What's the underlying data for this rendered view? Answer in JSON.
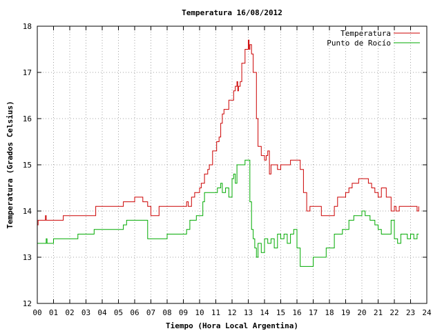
{
  "chart_data": {
    "type": "line",
    "title": "Temperatura 16/08/2012",
    "xlabel": "Tiempo (Hora Local Argentina)",
    "ylabel": "Temperatura (Grados Celsius)",
    "xlim": [
      0,
      24
    ],
    "ylim": [
      12,
      18
    ],
    "x_ticks": [
      "00",
      "01",
      "02",
      "03",
      "04",
      "05",
      "06",
      "07",
      "08",
      "09",
      "10",
      "11",
      "12",
      "13",
      "14",
      "15",
      "16",
      "17",
      "18",
      "19",
      "20",
      "21",
      "22",
      "23",
      "24"
    ],
    "y_ticks": [
      "12",
      "13",
      "14",
      "15",
      "16",
      "17",
      "18"
    ],
    "grid": true,
    "legend_position": "top-right",
    "series": [
      {
        "name": "Temperatura",
        "color": "#cc0000",
        "x": [
          0.0,
          0.05,
          0.1,
          0.3,
          0.45,
          0.5,
          0.55,
          1.0,
          1.5,
          1.6,
          2.0,
          3.0,
          3.5,
          3.6,
          4.5,
          5.0,
          5.2,
          5.3,
          5.5,
          5.7,
          5.8,
          6.0,
          6.2,
          6.3,
          6.5,
          6.8,
          7.0,
          7.5,
          8.0,
          8.5,
          9.0,
          9.2,
          9.3,
          9.5,
          9.7,
          10.0,
          10.1,
          10.2,
          10.3,
          10.5,
          10.6,
          10.8,
          10.9,
          11.0,
          11.05,
          11.2,
          11.3,
          11.4,
          11.5,
          11.8,
          12.0,
          12.1,
          12.2,
          12.3,
          12.35,
          12.4,
          12.5,
          12.6,
          12.8,
          12.9,
          13.0,
          13.05,
          13.1,
          13.2,
          13.3,
          13.5,
          13.6,
          13.8,
          14.0,
          14.1,
          14.2,
          14.3,
          14.4,
          14.5,
          14.6,
          14.8,
          15.0,
          15.2,
          15.4,
          15.6,
          15.8,
          16.0,
          16.2,
          16.4,
          16.6,
          16.8,
          17.0,
          17.2,
          17.5,
          17.8,
          18.0,
          18.3,
          18.5,
          18.7,
          19.0,
          19.2,
          19.4,
          19.6,
          19.8,
          20.0,
          20.2,
          20.4,
          20.6,
          20.8,
          21.0,
          21.2,
          21.5,
          21.8,
          22.0,
          22.1,
          22.3,
          22.5,
          22.8,
          23.0,
          23.2,
          23.4,
          23.5
        ],
        "y": [
          13.7,
          13.8,
          13.8,
          13.8,
          13.8,
          13.9,
          13.8,
          13.8,
          13.8,
          13.9,
          13.9,
          13.9,
          13.9,
          14.1,
          14.1,
          14.1,
          14.1,
          14.2,
          14.2,
          14.2,
          14.2,
          14.3,
          14.3,
          14.3,
          14.2,
          14.1,
          13.9,
          14.1,
          14.1,
          14.1,
          14.1,
          14.2,
          14.1,
          14.3,
          14.4,
          14.5,
          14.6,
          14.6,
          14.8,
          14.9,
          15.0,
          15.3,
          15.3,
          15.3,
          15.5,
          15.6,
          15.9,
          16.1,
          16.2,
          16.4,
          16.4,
          16.6,
          16.7,
          16.8,
          16.6,
          16.7,
          16.8,
          17.2,
          17.5,
          17.5,
          17.7,
          17.5,
          17.6,
          17.4,
          17.0,
          16.0,
          15.4,
          15.2,
          15.1,
          15.2,
          15.3,
          14.8,
          15.0,
          15.0,
          15.0,
          14.9,
          15.0,
          15.0,
          15.0,
          15.1,
          15.1,
          15.1,
          14.9,
          14.4,
          14.0,
          14.1,
          14.1,
          14.1,
          13.9,
          13.9,
          13.9,
          14.1,
          14.3,
          14.3,
          14.4,
          14.5,
          14.6,
          14.6,
          14.7,
          14.7,
          14.7,
          14.6,
          14.5,
          14.4,
          14.3,
          14.5,
          14.3,
          14.0,
          14.1,
          14.0,
          14.1,
          14.1,
          14.1,
          14.1,
          14.1,
          14.0,
          14.1
        ]
      },
      {
        "name": "Punto de Rocío",
        "color": "#00aa00",
        "x": [
          0.0,
          0.2,
          0.5,
          0.55,
          0.6,
          1.0,
          1.5,
          2.0,
          2.5,
          3.0,
          3.5,
          4.0,
          4.5,
          5.0,
          5.2,
          5.3,
          5.5,
          5.7,
          6.0,
          6.5,
          6.8,
          7.0,
          7.5,
          8.0,
          8.5,
          9.0,
          9.2,
          9.4,
          9.6,
          9.8,
          10.0,
          10.2,
          10.3,
          10.5,
          10.6,
          10.8,
          11.0,
          11.1,
          11.3,
          11.4,
          11.6,
          11.8,
          12.0,
          12.1,
          12.2,
          12.3,
          12.5,
          12.6,
          12.8,
          13.0,
          13.1,
          13.2,
          13.3,
          13.4,
          13.5,
          13.6,
          13.8,
          14.0,
          14.2,
          14.4,
          14.6,
          14.8,
          15.0,
          15.2,
          15.4,
          15.6,
          15.8,
          16.0,
          16.2,
          16.4,
          16.6,
          16.8,
          17.0,
          17.2,
          17.4,
          17.6,
          17.8,
          18.0,
          18.3,
          18.6,
          18.8,
          19.0,
          19.2,
          19.5,
          19.8,
          20.0,
          20.2,
          20.5,
          20.8,
          21.0,
          21.2,
          21.5,
          21.8,
          22.0,
          22.2,
          22.4,
          22.6,
          22.8,
          23.0,
          23.2,
          23.4,
          23.5
        ],
        "y": [
          13.3,
          13.3,
          13.3,
          13.4,
          13.3,
          13.4,
          13.4,
          13.4,
          13.5,
          13.5,
          13.6,
          13.6,
          13.6,
          13.6,
          13.6,
          13.7,
          13.8,
          13.8,
          13.8,
          13.8,
          13.4,
          13.4,
          13.4,
          13.5,
          13.5,
          13.5,
          13.6,
          13.8,
          13.8,
          13.9,
          13.9,
          14.2,
          14.4,
          14.4,
          14.4,
          14.4,
          14.4,
          14.5,
          14.6,
          14.4,
          14.5,
          14.3,
          14.7,
          14.8,
          14.6,
          15.0,
          15.0,
          15.0,
          15.1,
          15.1,
          14.2,
          13.6,
          13.4,
          13.2,
          13.0,
          13.3,
          13.1,
          13.4,
          13.3,
          13.4,
          13.2,
          13.5,
          13.4,
          13.5,
          13.3,
          13.5,
          13.6,
          13.2,
          12.8,
          12.8,
          12.8,
          12.8,
          13.0,
          13.0,
          13.0,
          13.0,
          13.2,
          13.2,
          13.5,
          13.5,
          13.6,
          13.6,
          13.8,
          13.9,
          13.9,
          14.0,
          13.9,
          13.8,
          13.7,
          13.6,
          13.5,
          13.5,
          13.8,
          13.4,
          13.3,
          13.5,
          13.5,
          13.4,
          13.5,
          13.4,
          13.5,
          13.5
        ]
      }
    ]
  }
}
